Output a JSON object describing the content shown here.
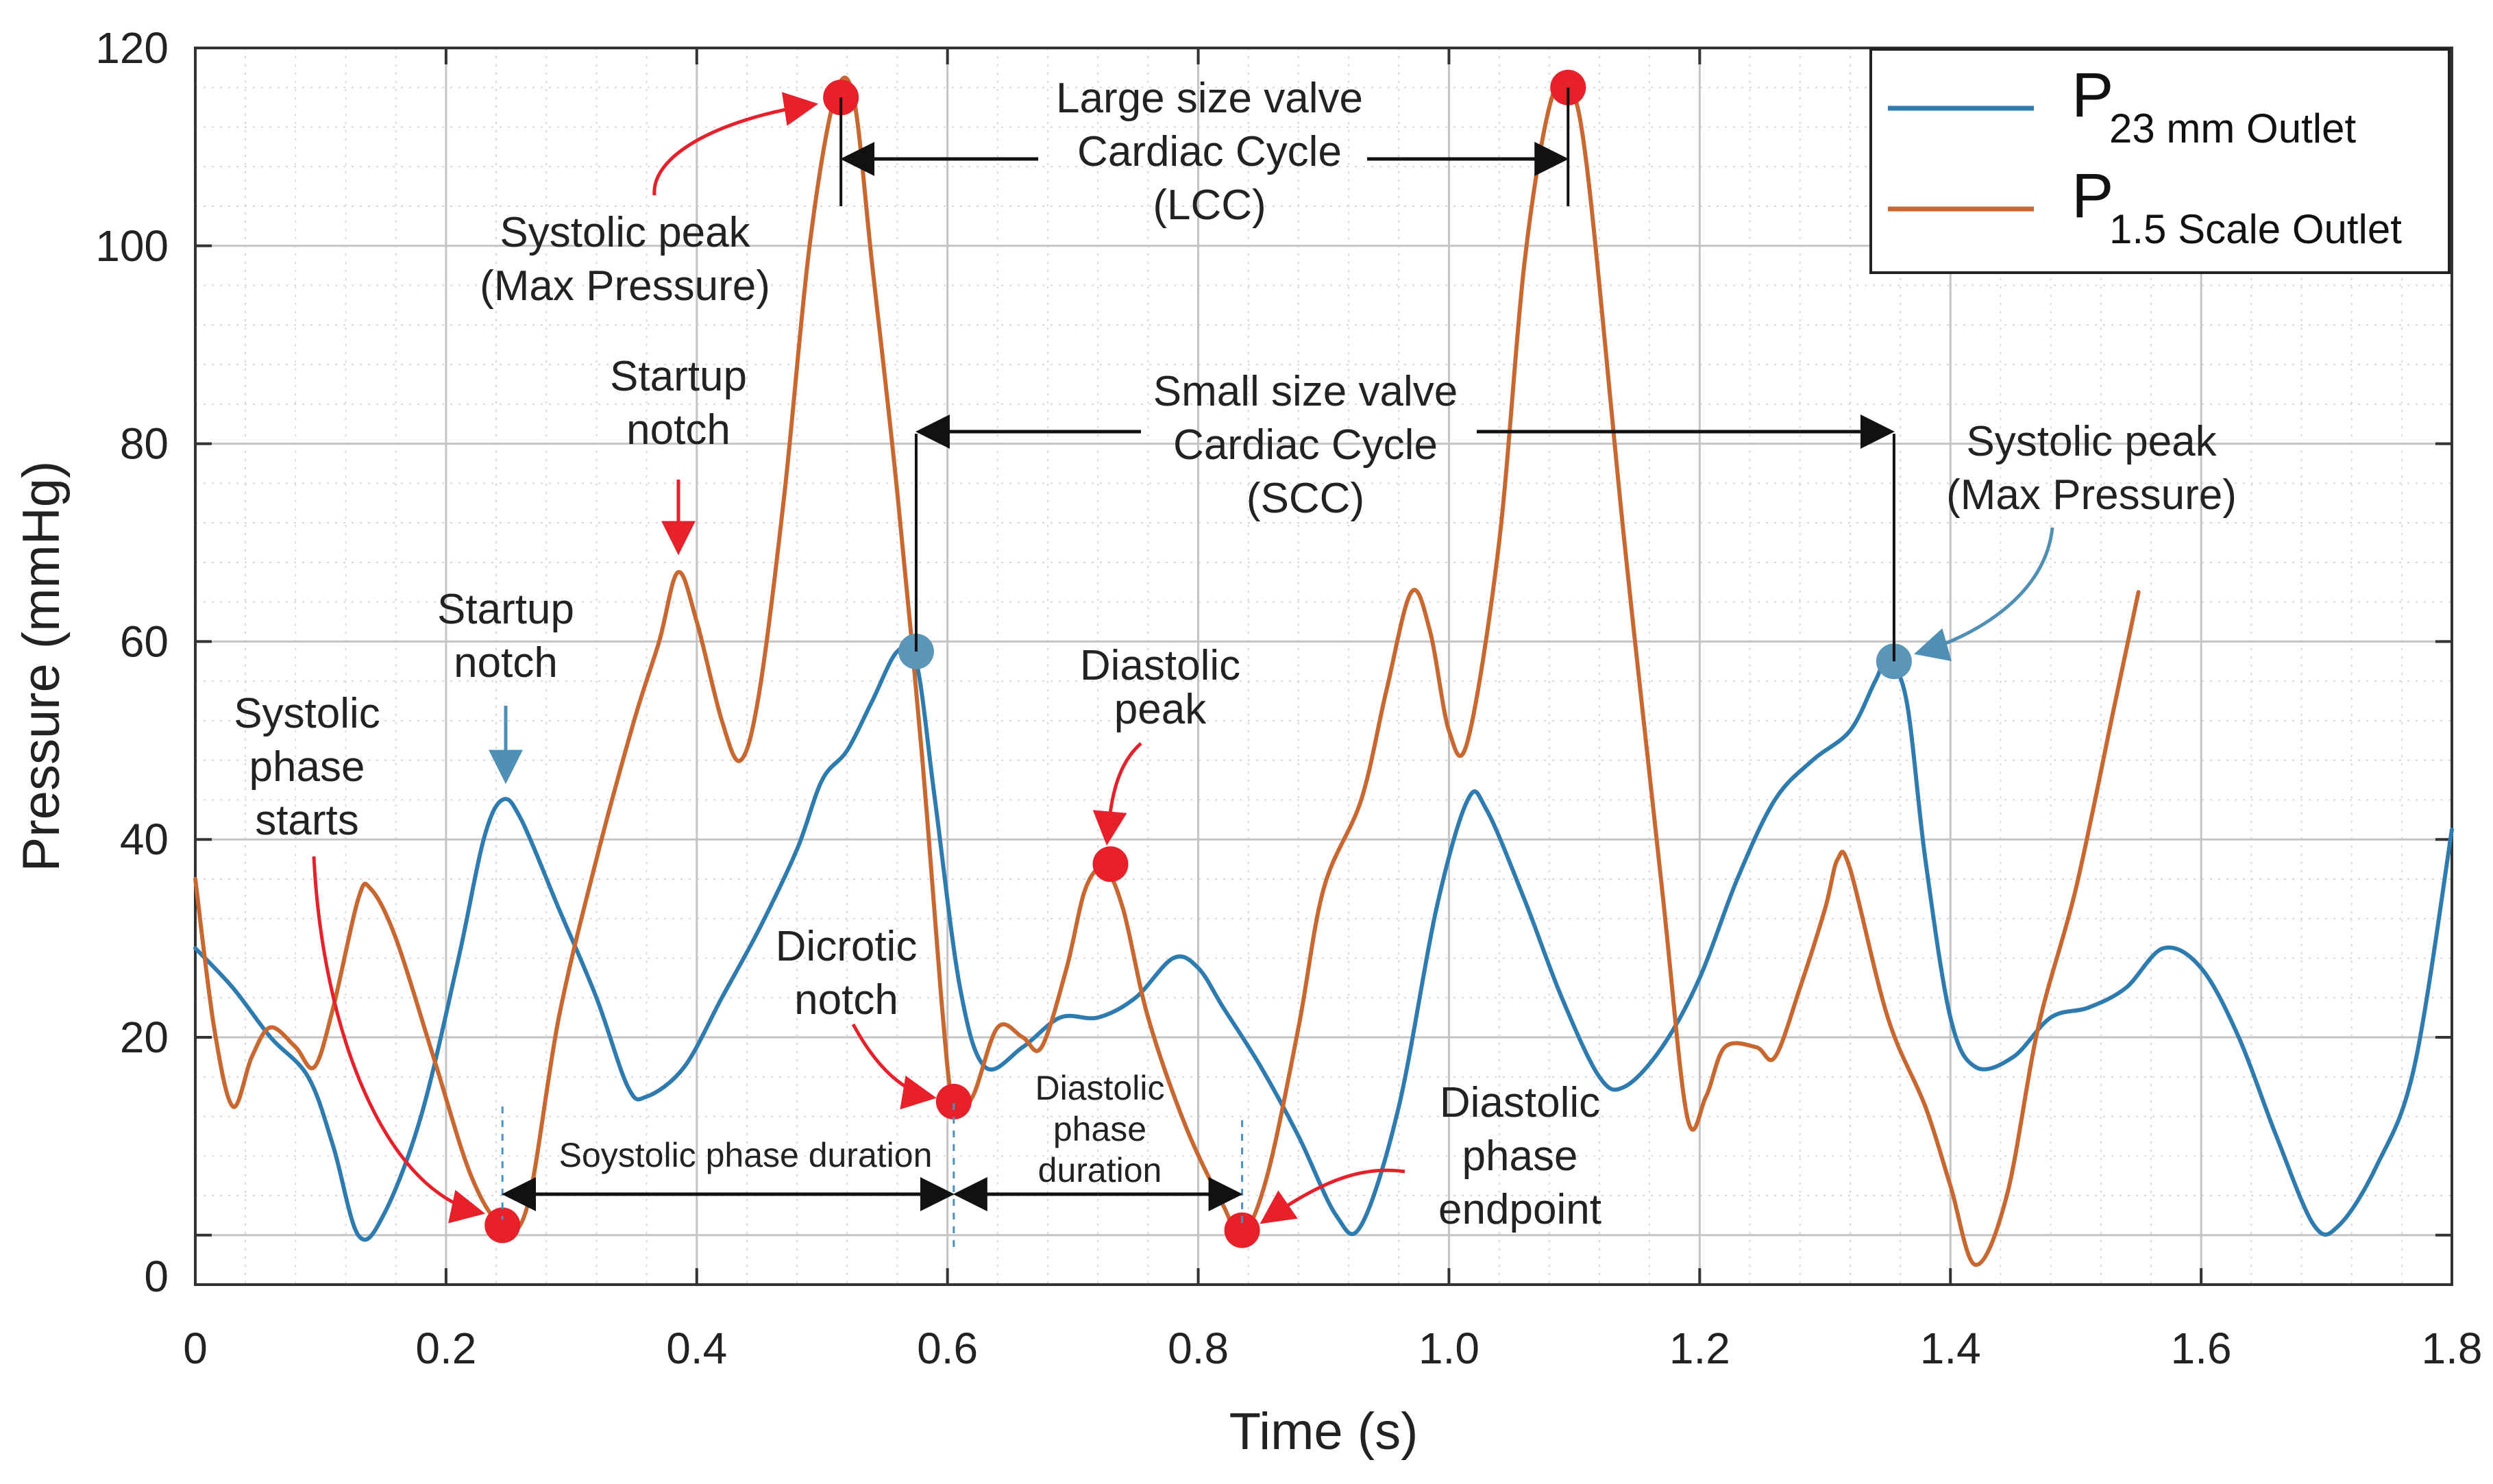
{
  "chart_data": {
    "type": "line",
    "xlabel": "Time (s)",
    "ylabel": "Pressure (mmHg)",
    "xlim": [
      0,
      1.8
    ],
    "ylim": [
      -5,
      120
    ],
    "x_ticks": [
      "0",
      "0.2",
      "0.4",
      "0.6",
      "0.8",
      "1.0",
      "1.2",
      "1.4",
      "1.6",
      "1.8"
    ],
    "y_ticks": [
      "0",
      "20",
      "40",
      "60",
      "80",
      "100",
      "120"
    ],
    "grid": true,
    "legend_position": "top-right",
    "series": [
      {
        "name": "P 23 mm Outlet",
        "legend_main": "P",
        "legend_sub": "23 mm Outlet",
        "color": "#2e7bb0",
        "points": [
          [
            0,
            29
          ],
          [
            0.03,
            25
          ],
          [
            0.06,
            20
          ],
          [
            0.09,
            16
          ],
          [
            0.11,
            9
          ],
          [
            0.13,
            0
          ],
          [
            0.15,
            2
          ],
          [
            0.18,
            12
          ],
          [
            0.21,
            28
          ],
          [
            0.23,
            40
          ],
          [
            0.245,
            44
          ],
          [
            0.26,
            42
          ],
          [
            0.29,
            33
          ],
          [
            0.32,
            24
          ],
          [
            0.345,
            15
          ],
          [
            0.36,
            14
          ],
          [
            0.39,
            17
          ],
          [
            0.42,
            24
          ],
          [
            0.45,
            31
          ],
          [
            0.48,
            39
          ],
          [
            0.5,
            46
          ],
          [
            0.52,
            49
          ],
          [
            0.54,
            54
          ],
          [
            0.56,
            59
          ],
          [
            0.575,
            58
          ],
          [
            0.59,
            44
          ],
          [
            0.61,
            25
          ],
          [
            0.63,
            17
          ],
          [
            0.66,
            19
          ],
          [
            0.69,
            22
          ],
          [
            0.72,
            22
          ],
          [
            0.75,
            24
          ],
          [
            0.78,
            28
          ],
          [
            0.8,
            27
          ],
          [
            0.82,
            23
          ],
          [
            0.85,
            17
          ],
          [
            0.88,
            10
          ],
          [
            0.91,
            2
          ],
          [
            0.93,
            1
          ],
          [
            0.96,
            13
          ],
          [
            0.99,
            33
          ],
          [
            1.015,
            44
          ],
          [
            1.03,
            43
          ],
          [
            1.06,
            34
          ],
          [
            1.09,
            24
          ],
          [
            1.12,
            16
          ],
          [
            1.14,
            15
          ],
          [
            1.17,
            19
          ],
          [
            1.2,
            26
          ],
          [
            1.23,
            36
          ],
          [
            1.26,
            44
          ],
          [
            1.29,
            48
          ],
          [
            1.32,
            51
          ],
          [
            1.34,
            56
          ],
          [
            1.35,
            58
          ],
          [
            1.365,
            54
          ],
          [
            1.38,
            38
          ],
          [
            1.4,
            22
          ],
          [
            1.42,
            17
          ],
          [
            1.45,
            18
          ],
          [
            1.48,
            22
          ],
          [
            1.51,
            23
          ],
          [
            1.54,
            25
          ],
          [
            1.57,
            29
          ],
          [
            1.6,
            27
          ],
          [
            1.63,
            20
          ],
          [
            1.66,
            10
          ],
          [
            1.69,
            1
          ],
          [
            1.71,
            1
          ],
          [
            1.74,
            7
          ],
          [
            1.77,
            17
          ],
          [
            1.8,
            41
          ]
        ]
      },
      {
        "name": "P 1.5 Scale Outlet",
        "legend_main": "P",
        "legend_sub": "1.5 Scale Outlet",
        "color": "#c8672f",
        "points": [
          [
            0,
            36
          ],
          [
            0.015,
            21
          ],
          [
            0.03,
            13
          ],
          [
            0.045,
            18
          ],
          [
            0.06,
            21
          ],
          [
            0.08,
            19
          ],
          [
            0.095,
            17
          ],
          [
            0.11,
            23
          ],
          [
            0.13,
            34
          ],
          [
            0.14,
            35
          ],
          [
            0.16,
            30
          ],
          [
            0.19,
            18
          ],
          [
            0.22,
            6
          ],
          [
            0.245,
            1
          ],
          [
            0.265,
            3
          ],
          [
            0.29,
            22
          ],
          [
            0.32,
            38
          ],
          [
            0.35,
            52
          ],
          [
            0.37,
            60
          ],
          [
            0.385,
            67
          ],
          [
            0.4,
            62
          ],
          [
            0.42,
            52
          ],
          [
            0.435,
            48
          ],
          [
            0.45,
            55
          ],
          [
            0.47,
            75
          ],
          [
            0.49,
            100
          ],
          [
            0.51,
            115
          ],
          [
            0.525,
            115
          ],
          [
            0.54,
            98
          ],
          [
            0.56,
            75
          ],
          [
            0.58,
            48
          ],
          [
            0.595,
            24
          ],
          [
            0.605,
            13
          ],
          [
            0.62,
            14
          ],
          [
            0.64,
            21
          ],
          [
            0.66,
            20
          ],
          [
            0.675,
            19
          ],
          [
            0.695,
            27
          ],
          [
            0.71,
            35
          ],
          [
            0.725,
            37
          ],
          [
            0.74,
            33
          ],
          [
            0.76,
            22
          ],
          [
            0.79,
            11
          ],
          [
            0.82,
            3
          ],
          [
            0.835,
            0
          ],
          [
            0.855,
            6
          ],
          [
            0.88,
            21
          ],
          [
            0.9,
            35
          ],
          [
            0.93,
            44
          ],
          [
            0.95,
            55
          ],
          [
            0.97,
            65
          ],
          [
            0.985,
            61
          ],
          [
            1.0,
            51
          ],
          [
            1.015,
            50
          ],
          [
            1.04,
            70
          ],
          [
            1.06,
            98
          ],
          [
            1.08,
            114
          ],
          [
            1.095,
            116
          ],
          [
            1.11,
            108
          ],
          [
            1.14,
            70
          ],
          [
            1.17,
            35
          ],
          [
            1.19,
            12
          ],
          [
            1.205,
            14
          ],
          [
            1.22,
            19
          ],
          [
            1.245,
            19
          ],
          [
            1.26,
            18
          ],
          [
            1.28,
            25
          ],
          [
            1.3,
            33
          ],
          [
            1.31,
            38
          ],
          [
            1.32,
            37
          ],
          [
            1.35,
            22
          ],
          [
            1.38,
            13
          ],
          [
            1.4,
            5
          ],
          [
            1.42,
            -3
          ],
          [
            1.445,
            4
          ],
          [
            1.47,
            21
          ],
          [
            1.5,
            35
          ],
          [
            1.53,
            53
          ],
          [
            1.55,
            65
          ]
        ]
      }
    ],
    "markers": [
      {
        "x": 0.245,
        "y": 1,
        "color": "#e8202a"
      },
      {
        "x": 0.515,
        "y": 115,
        "color": "#e8202a"
      },
      {
        "x": 0.605,
        "y": 13.5,
        "color": "#e8202a"
      },
      {
        "x": 0.73,
        "y": 37.5,
        "color": "#e8202a"
      },
      {
        "x": 0.835,
        "y": 0.5,
        "color": "#e8202a"
      },
      {
        "x": 1.095,
        "y": 116,
        "color": "#e8202a"
      },
      {
        "x": 0.575,
        "y": 59,
        "color": "#5b95b7"
      },
      {
        "x": 1.355,
        "y": 58,
        "color": "#5b95b7"
      }
    ],
    "annotations": {
      "systolic_starts": [
        "Systolic",
        "phase",
        "starts"
      ],
      "startup_notch_blue": [
        "Startup",
        "notch"
      ],
      "startup_notch_orange": [
        "Startup",
        "notch"
      ],
      "systolic_peak_left": [
        "Systolic peak",
        "(Max Pressure)"
      ],
      "systolic_peak_right": [
        "Systolic peak",
        "(Max Pressure)"
      ],
      "lcc": [
        "Large size valve",
        "Cardiac Cycle",
        "(LCC)"
      ],
      "scc": [
        "Small size valve",
        "Cardiac Cycle",
        "(SCC)"
      ],
      "diastolic_peak": [
        "Diastolic",
        "peak"
      ],
      "dicrotic_notch": [
        "Dicrotic",
        "notch"
      ],
      "diastolic_endpoint": [
        "Diastolic",
        "phase",
        "endpoint"
      ],
      "systolic_duration": "Soystolic phase duration",
      "diastolic_duration": [
        "Diastolic",
        "phase",
        "duration"
      ]
    }
  }
}
